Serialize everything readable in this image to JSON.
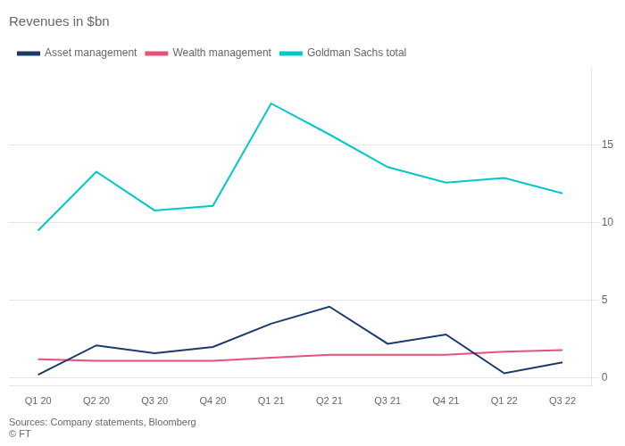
{
  "chart_data": {
    "type": "line",
    "title": "Revenues in $bn",
    "categories": [
      "Q1 20",
      "Q2 20",
      "Q3 20",
      "Q4 20",
      "Q1 21",
      "Q2 21",
      "Q3 21",
      "Q4 21",
      "Q1 22",
      "Q3 22"
    ],
    "series": [
      {
        "name": "Asset management",
        "color": "#1a3a6b",
        "values": [
          0.2,
          2.1,
          1.6,
          2.0,
          3.5,
          4.6,
          2.2,
          2.8,
          0.3,
          1.0
        ]
      },
      {
        "name": "Wealth management",
        "color": "#e8517a",
        "values": [
          1.2,
          1.1,
          1.1,
          1.1,
          1.3,
          1.5,
          1.5,
          1.5,
          1.7,
          1.8
        ]
      },
      {
        "name": "Goldman Sachs total",
        "color": "#00c8c8",
        "values": [
          9.5,
          13.3,
          10.8,
          11.1,
          17.7,
          15.7,
          13.6,
          12.6,
          12.9,
          11.9
        ]
      }
    ],
    "ylim": [
      -0.5,
      20
    ],
    "yticks": [
      0,
      5,
      10,
      15
    ],
    "grid": "y",
    "legend": "upper left",
    "marker": "none",
    "line_style": "solid",
    "annotations": [
      "Sources: Company statements, Bloomberg",
      "© FT"
    ]
  }
}
